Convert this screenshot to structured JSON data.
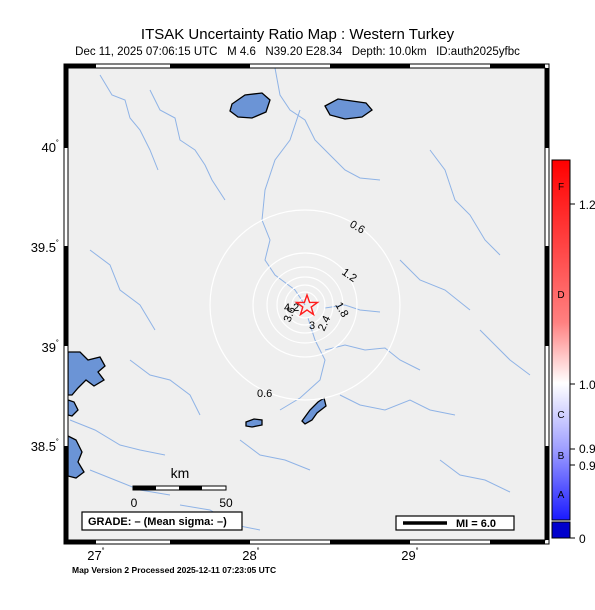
{
  "map": {
    "title": "ITSAK Uncertainty Ratio Map : Western Turkey",
    "subtitle": "Dec 11, 2025 07:06:15 UTC   M 4.6   N39.20 E28.34   Depth: 10.0km   ID:auth2025yfbc",
    "footer": "Map Version 2 Processed 2025-12-11 07:23:05 UTC",
    "lat_ticks": [
      "40",
      "39.5",
      "39",
      "38.5"
    ],
    "lon_ticks": [
      "27",
      "28",
      "29"
    ],
    "tick_suffix": "˚",
    "contour_labels": [
      "0.6",
      "1.2",
      "1.8",
      "2.4",
      "3",
      "3.6",
      "4.2",
      "0.6"
    ],
    "scale": {
      "title": "km",
      "min_label": "0",
      "max_label": "50"
    },
    "grade_text": "GRADE: – (Mean sigma: –)",
    "mi_legend": "MI = 6.0",
    "epicenter_marker": "star-icon",
    "colors": {
      "land": "#efefef",
      "water": "#6b94d6",
      "rivers": "#8fb3e6",
      "contours": "#ffffff",
      "star": "#ff1e1e"
    }
  },
  "colorbar": {
    "grades": [
      "F",
      "D",
      "C",
      "B",
      "A"
    ],
    "values": [
      "1.2",
      "1.0",
      "0.9",
      "0.9",
      "0"
    ]
  }
}
